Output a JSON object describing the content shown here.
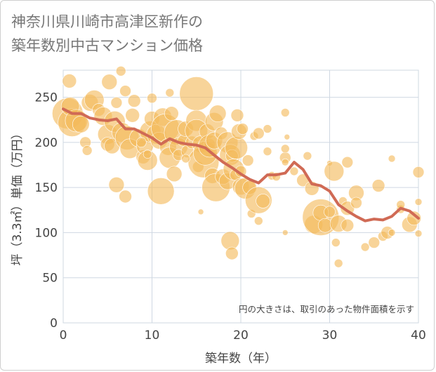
{
  "chart_data": {
    "type": "scatter",
    "title": [
      "神奈川県川崎市高津区新作の",
      "築年数別中古マンション価格"
    ],
    "xlabel": "築年数（年）",
    "ylabel": "坪（3.3㎡）単価（万円）",
    "xlim": [
      0,
      40
    ],
    "ylim": [
      0,
      280
    ],
    "x_ticks": [
      0,
      10,
      20,
      30,
      40
    ],
    "y_ticks": [
      0,
      50,
      100,
      150,
      200,
      250
    ],
    "grid": true,
    "annotation": "円の大きさは、取引のあった物件面積を示す",
    "colors": {
      "bubble": "#f3b95a",
      "line": "#d06a55",
      "grid": "#cfd8e2",
      "axis_text": "#444444"
    },
    "series": [
      {
        "type": "line",
        "x": [
          0,
          1,
          2,
          3,
          4,
          5,
          6,
          7,
          8,
          9,
          10,
          11,
          12,
          13,
          14,
          15,
          16,
          17,
          18,
          19,
          20,
          21,
          22,
          23,
          24,
          25,
          26,
          27,
          28,
          29,
          30,
          31,
          32,
          33,
          34,
          35,
          36,
          37,
          38,
          39,
          40
        ],
        "values": [
          237,
          232,
          232,
          227,
          225,
          224,
          226,
          215,
          215,
          210,
          205,
          198,
          204,
          200,
          198,
          197,
          194,
          186,
          178,
          172,
          165,
          159,
          155,
          164,
          164,
          166,
          178,
          170,
          154,
          152,
          146,
          131,
          124,
          118,
          113,
          115,
          114,
          118,
          127,
          124,
          116
        ]
      },
      {
        "type": "bubble",
        "points": [
          [
            0.5,
            232,
            22
          ],
          [
            1,
            222,
            20
          ],
          [
            0.8,
            240,
            13
          ],
          [
            0.7,
            268,
            10
          ],
          [
            1.5,
            224,
            16
          ],
          [
            2,
            220,
            12
          ],
          [
            2.5,
            200,
            8
          ],
          [
            2.7,
            191,
            7
          ],
          [
            3,
            244,
            12
          ],
          [
            3.5,
            247,
            14
          ],
          [
            4,
            236,
            9
          ],
          [
            4.5,
            229,
            13
          ],
          [
            5,
            209,
            14
          ],
          [
            5,
            198,
            10
          ],
          [
            5.2,
            267,
            11
          ],
          [
            5.5,
            196,
            11
          ],
          [
            5.8,
            223,
            15
          ],
          [
            6,
            153,
            11
          ],
          [
            6,
            244,
            8
          ],
          [
            6.5,
            279,
            7
          ],
          [
            6.6,
            211,
            14
          ],
          [
            7,
            257,
            8
          ],
          [
            7,
            140,
            9
          ],
          [
            7.2,
            205,
            17
          ],
          [
            7.5,
            193,
            14
          ],
          [
            7.8,
            230,
            10
          ],
          [
            8,
            246,
            9
          ],
          [
            8.5,
            205,
            13
          ],
          [
            9,
            184,
            10
          ],
          [
            9.2,
            196,
            12
          ],
          [
            9.5,
            180,
            14
          ],
          [
            9.8,
            212,
            15
          ],
          [
            10,
            226,
            11
          ],
          [
            10,
            249,
            7
          ],
          [
            10.5,
            209,
            14
          ],
          [
            10.8,
            202,
            12
          ],
          [
            11,
            146,
            19
          ],
          [
            11.2,
            228,
            13
          ],
          [
            11.5,
            216,
            20
          ],
          [
            11.8,
            195,
            12
          ],
          [
            12,
            183,
            15
          ],
          [
            12.2,
            232,
            10
          ],
          [
            12.5,
            165,
            11
          ],
          [
            12.8,
            211,
            18
          ],
          [
            13,
            195,
            13
          ],
          [
            13,
            186,
            8
          ],
          [
            13.5,
            202,
            8
          ],
          [
            13.8,
            215,
            11
          ],
          [
            14,
            190,
            9
          ],
          [
            14.5,
            200,
            9
          ],
          [
            15,
            254,
            24
          ],
          [
            15,
            224,
            15
          ],
          [
            15,
            213,
            16
          ],
          [
            15.2,
            173,
            8
          ],
          [
            15.5,
            198,
            12
          ],
          [
            15.8,
            178,
            22
          ],
          [
            16,
            188,
            17
          ],
          [
            16.2,
            212,
            11
          ],
          [
            16.5,
            198,
            8
          ],
          [
            16.8,
            163,
            11
          ],
          [
            16.5,
            196,
            16
          ],
          [
            17,
            223,
            13
          ],
          [
            17,
            202,
            12
          ],
          [
            17.2,
            150,
            20
          ],
          [
            17.4,
            232,
            12
          ],
          [
            17.8,
            210,
            9
          ],
          [
            18,
            162,
            11
          ],
          [
            18.5,
            200,
            15
          ],
          [
            18.5,
            157,
            12
          ],
          [
            18.8,
            186,
            15
          ],
          [
            19,
            185,
            9
          ],
          [
            19.2,
            170,
            15
          ],
          [
            19.4,
            164,
            8
          ],
          [
            19.5,
            194,
            16
          ],
          [
            19.6,
            230,
            9
          ],
          [
            19.8,
            212,
            11
          ],
          [
            20,
            151,
            12
          ],
          [
            20,
            168,
            8
          ],
          [
            20.2,
            215,
            8
          ],
          [
            20.5,
            149,
            15
          ],
          [
            20.8,
            180,
            8
          ],
          [
            21,
            150,
            10
          ],
          [
            21.2,
            121,
            6
          ],
          [
            21.5,
            207,
            6
          ],
          [
            22,
            136,
            19
          ],
          [
            22,
            113,
            6
          ],
          [
            22,
            210,
            8
          ],
          [
            22.5,
            135,
            10
          ],
          [
            23,
            215,
            6
          ],
          [
            23.5,
            163,
            6
          ],
          [
            24,
            162,
            6
          ],
          [
            25,
            183,
            8
          ],
          [
            25,
            178,
            5
          ],
          [
            25,
            193,
            6
          ],
          [
            25,
            233,
            6
          ],
          [
            25.2,
            206,
            4
          ],
          [
            26,
            168,
            6
          ],
          [
            27,
            158,
            9
          ],
          [
            27.5,
            185,
            6
          ],
          [
            28,
            149,
            10
          ],
          [
            28.2,
            109,
            13
          ],
          [
            29,
            117,
            26
          ],
          [
            29,
            122,
            11
          ],
          [
            29.5,
            108,
            10
          ],
          [
            30,
            123,
            8
          ],
          [
            30,
            177,
            4
          ],
          [
            30.5,
            168,
            14
          ],
          [
            30.7,
            89,
            6
          ],
          [
            31,
            66,
            6
          ],
          [
            31,
            110,
            12
          ],
          [
            31.5,
            135,
            6
          ],
          [
            32,
            178,
            8
          ],
          [
            32,
            127,
            10
          ],
          [
            32,
            108,
            9
          ],
          [
            33,
            144,
            11
          ],
          [
            33,
            133,
            8
          ],
          [
            34,
            84,
            6
          ],
          [
            35,
            89,
            8
          ],
          [
            35.5,
            152,
            9
          ],
          [
            36,
            96,
            7
          ],
          [
            36.5,
            100,
            9
          ],
          [
            37,
            100,
            5
          ],
          [
            37,
            182,
            5
          ],
          [
            38,
            126,
            6
          ],
          [
            38,
            131,
            6
          ],
          [
            39,
            109,
            11
          ],
          [
            39.5,
            116,
            10
          ],
          [
            40,
            167,
            8
          ],
          [
            40,
            134,
            5
          ],
          [
            40,
            99,
            5
          ],
          [
            15.5,
            123,
            4
          ],
          [
            18.8,
            91,
            13
          ],
          [
            19,
            77,
            9
          ],
          [
            25,
            100,
            4
          ],
          [
            9.5,
            187,
            6
          ],
          [
            8.8,
            200,
            7
          ],
          [
            13.8,
            182,
            6
          ],
          [
            12,
            255,
            6
          ],
          [
            23,
            190,
            6
          ]
        ]
      }
    ]
  }
}
